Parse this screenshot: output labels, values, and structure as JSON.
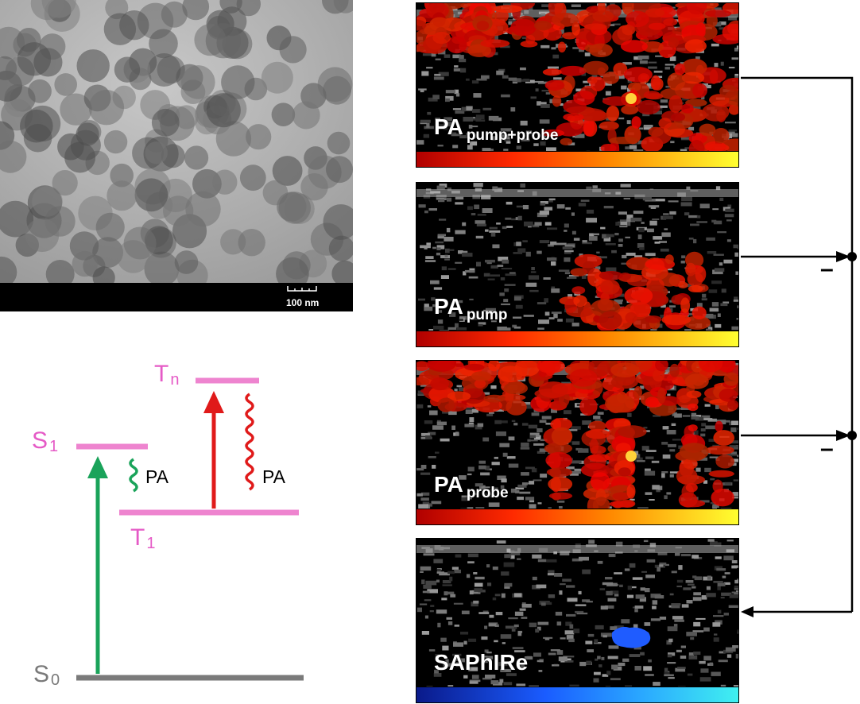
{
  "tem_image": {
    "scale_label": "100 nm"
  },
  "energy_diagram": {
    "levels": {
      "s0": {
        "letter": "S",
        "index": "0"
      },
      "s1": {
        "letter": "S",
        "index": "1"
      },
      "t1": {
        "letter": "T",
        "index": "1"
      },
      "tn": {
        "letter": "T",
        "index": "n"
      }
    },
    "emission_labels": [
      "PA",
      "PA"
    ],
    "colors": {
      "singlet": "#e55ac6",
      "ground": "#7a7a7a",
      "green": "#1aa35a",
      "red": "#e01a1a"
    }
  },
  "panels": [
    {
      "main": "PA",
      "sub": "pump+probe",
      "colormap": "hot"
    },
    {
      "main": "PA",
      "sub": "pump",
      "colormap": "hot"
    },
    {
      "main": "PA",
      "sub": "probe",
      "colormap": "hot"
    },
    {
      "main": "SAPhIRe",
      "sub": "",
      "colormap": "blue"
    }
  ],
  "operators": [
    "–",
    "–"
  ]
}
